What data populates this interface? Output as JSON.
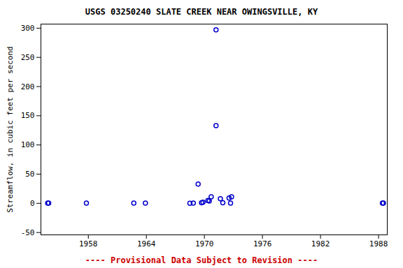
{
  "chart_data": {
    "type": "scatter",
    "title": "USGS 03250240 SLATE CREEK NEAR OWINGSVILLE, KY",
    "y_label": "Streamflow, in cubic feet per second",
    "caption": "---- Provisional Data Subject to Revision ----",
    "x": [
      1953.8,
      1953.9,
      1957.8,
      1962.7,
      1963.9,
      1968.5,
      1968.85,
      1969.35,
      1969.7,
      1969.85,
      1970.36,
      1970.5,
      1970.7,
      1971.2,
      1971.2,
      1971.65,
      1971.9,
      1972.55,
      1972.7,
      1972.8,
      1988.4,
      1988.5
    ],
    "values": [
      0.5,
      0.5,
      0.3,
      0.3,
      0.3,
      0.2,
      0.3,
      33,
      1,
      2,
      5,
      4,
      11,
      297,
      133,
      8,
      1,
      9,
      0.5,
      11,
      0.3,
      0.3
    ],
    "color": "#0000cc",
    "marker": "circle",
    "xlim": [
      1953.1,
      1988.9
    ],
    "xticks": [
      1958,
      1964,
      1970,
      1976,
      1982,
      1988
    ],
    "ylim": [
      -54,
      307
    ],
    "yticks": [
      -50,
      0,
      50,
      100,
      150,
      200,
      250,
      300
    ],
    "grid": false
  }
}
